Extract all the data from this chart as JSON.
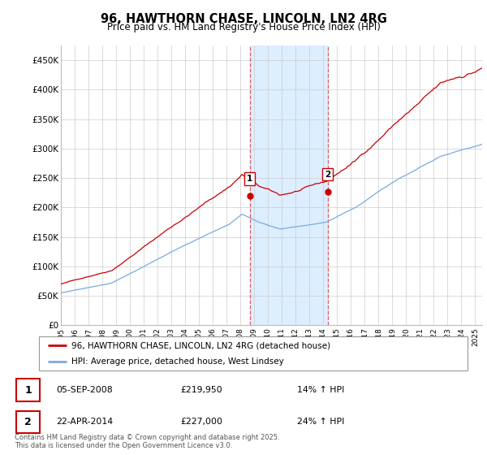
{
  "title": "96, HAWTHORN CHASE, LINCOLN, LN2 4RG",
  "subtitle": "Price paid vs. HM Land Registry's House Price Index (HPI)",
  "ylabel_ticks": [
    "£0",
    "£50K",
    "£100K",
    "£150K",
    "£200K",
    "£250K",
    "£300K",
    "£350K",
    "£400K",
    "£450K"
  ],
  "ytick_vals": [
    0,
    50000,
    100000,
    150000,
    200000,
    250000,
    300000,
    350000,
    400000,
    450000
  ],
  "ylim": [
    0,
    475000
  ],
  "xlim_start": 1995.0,
  "xlim_end": 2025.5,
  "line1_color": "#cc0000",
  "line2_color": "#7aaadd",
  "line1_label": "96, HAWTHORN CHASE, LINCOLN, LN2 4RG (detached house)",
  "line2_label": "HPI: Average price, detached house, West Lindsey",
  "marker1_date": 2008.67,
  "marker1_value": 219950,
  "marker2_date": 2014.31,
  "marker2_value": 227000,
  "table_row1": [
    "1",
    "05-SEP-2008",
    "£219,950",
    "14% ↑ HPI"
  ],
  "table_row2": [
    "2",
    "22-APR-2014",
    "£227,000",
    "24% ↑ HPI"
  ],
  "footnote": "Contains HM Land Registry data © Crown copyright and database right 2025.\nThis data is licensed under the Open Government Licence v3.0.",
  "bg_color": "#ffffff",
  "grid_color": "#cccccc",
  "shaded_region_start": 2008.67,
  "shaded_region_end": 2014.31,
  "shaded_color": "#ddeeff",
  "vline_color": "#dd4444"
}
